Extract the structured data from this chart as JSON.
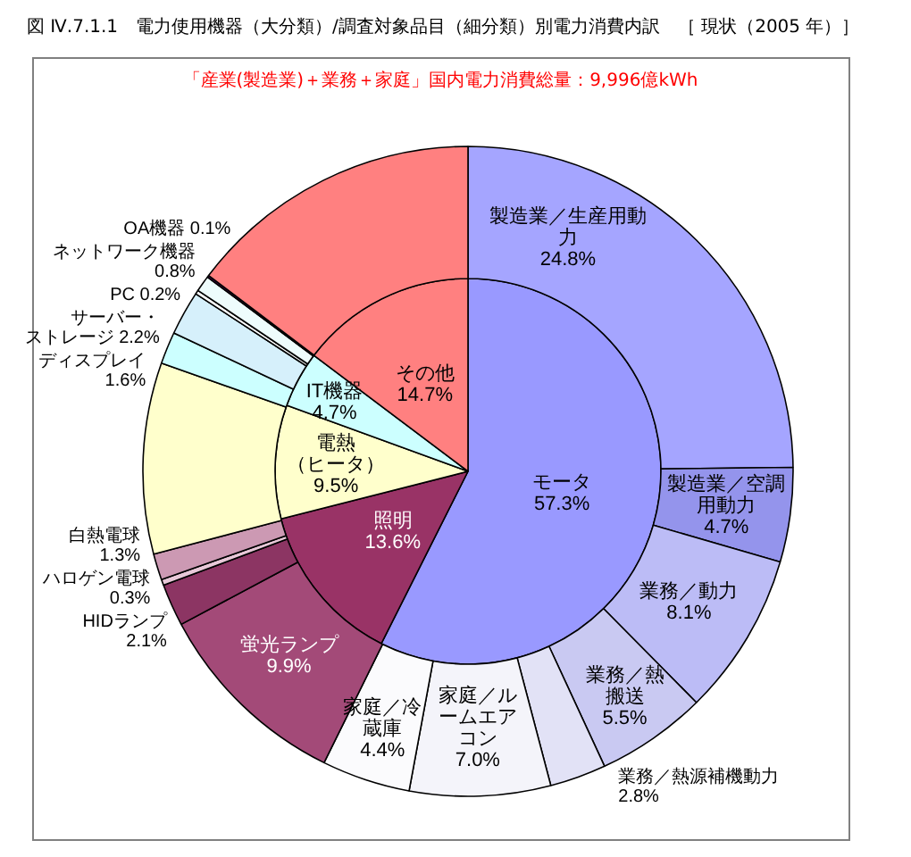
{
  "chart_data": [
    {
      "type": "pie",
      "title": "図 Ⅳ.7.1.1　電力使用機器（大分類）/調査対象品目（細分類）別電力消費内訳　［ 現状（2005 年）］",
      "subtitle": "「産業(製造業)＋業務＋家庭」国内電力消費総量：9,996億kWh",
      "categories": [
        "モータ",
        "照明",
        "電熱（ヒータ）",
        "IT機器",
        "その他"
      ],
      "values": [
        57.3,
        13.6,
        9.5,
        4.7,
        14.7
      ],
      "colors": [
        "#9999ff",
        "#993366",
        "#ffffcc",
        "#ccffff",
        "#ff8080"
      ],
      "value_labels": [
        "57.3%",
        "13.6%",
        "9.5%",
        "4.7%",
        "14.7%"
      ]
    },
    {
      "type": "donut",
      "categories": [
        "製造業／生産用動力",
        "製造業／空調用動力",
        "業務／動力",
        "業務／熱搬送",
        "業務／熱源補機動力",
        "家庭／ルームエアコン",
        "家庭／冷蔵庫",
        "蛍光ランプ",
        "HIDランプ",
        "ハロゲン電球",
        "白熱電球",
        null,
        "ディスプレイ",
        "サーバー・ストレージ",
        "PC",
        "ネットワーク機器",
        "OA機器",
        null
      ],
      "values": [
        24.8,
        4.7,
        8.1,
        5.5,
        2.8,
        7.0,
        4.4,
        9.9,
        2.1,
        0.3,
        1.3,
        9.5,
        1.6,
        2.2,
        0.2,
        0.8,
        0.1,
        14.7
      ],
      "colors": [
        "#a5a5ff",
        "#9494ec",
        "#bcbcf6",
        "#c9c9f2",
        "#e2e2f6",
        "#f4f4fa",
        "#fbfbfd",
        "#a34a78",
        "#8c3563",
        "#e8c8d8",
        "#cc99b3",
        "#ffffcc",
        "#ccffff",
        "#d6f0fb",
        "#ffffff",
        "#eefcfc",
        "#660066",
        "#ff8080"
      ],
      "value_labels": [
        "24.8%",
        "4.7%",
        "8.1%",
        "5.5%",
        "2.8%",
        "7.0%",
        "4.4%",
        "9.9%",
        "2.1%",
        "0.3%",
        "1.3%",
        null,
        "1.6%",
        "2.2%",
        "0.2%",
        "0.8%",
        "0.1%",
        null
      ]
    }
  ]
}
